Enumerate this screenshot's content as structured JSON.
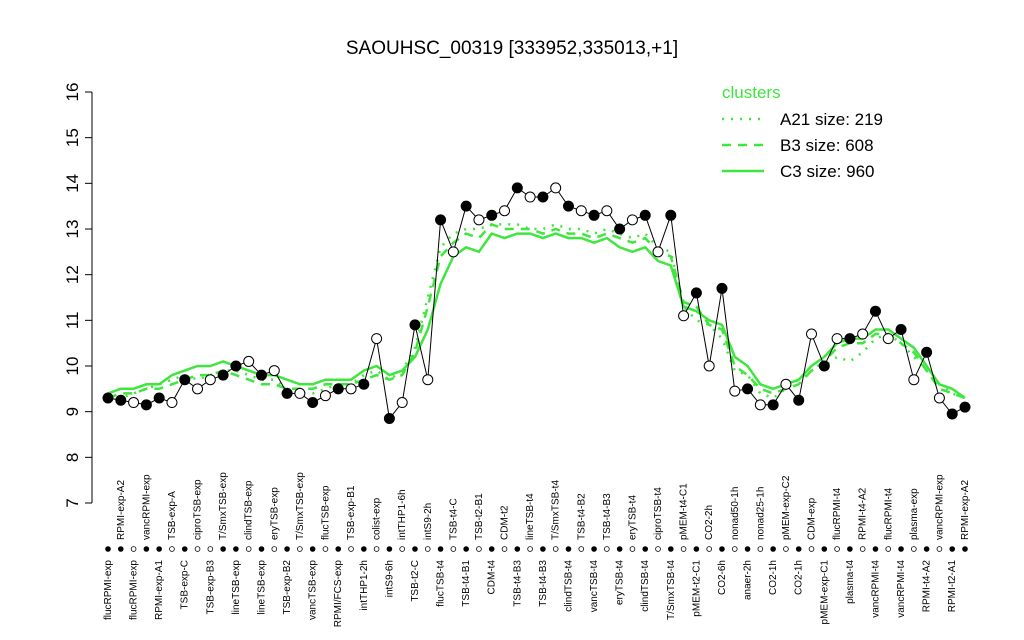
{
  "chart_data": {
    "type": "line",
    "title": "SAOUHSC_00319 [333952,335013,+1]",
    "categories": [
      "flucRPMI-exp",
      "RPMI-exp-A2",
      "flucRPMI-exp",
      "vancRPMI-exp",
      "RPMI-exp-A1",
      "TSB-exp-A",
      "TSB-exp-C",
      "ciproTSB-exp",
      "TSB-exp-B3",
      "T/SmxTSB-exp",
      "lineTSB-exp",
      "clindTSB-exp",
      "lineTSB-exp",
      "eryTSB-exp",
      "TSB-exp-B2",
      "T/SmxTSB-exp",
      "vancTSB-exp",
      "flucTSB-exp",
      "RPMI/FCS-exp",
      "TSB-exp-B1",
      "intTHP1-2h",
      "colist-exp",
      "intS9-6h",
      "intTHP1-6h",
      "TSB-t2-C",
      "intS9-2h",
      "flucTSB-t4",
      "TSB-t4-C",
      "TSB-t4-B1",
      "TSB-t2-B1",
      "CDM-t4",
      "CDM-t2",
      "TSB-t4-B3",
      "lineTSB-t4",
      "TSB-t4-B3",
      "T/SmxTSB-t4",
      "clindTSB-t4",
      "TSB-t4-B2",
      "vancTSB-t4",
      "TSB-t4-B3",
      "eryTSB-t4",
      "eryTSB-t4",
      "clindTSB-t4",
      "ciproTSB-t4",
      "T/SmxTSB-t4",
      "pMEM-t4-C1",
      "pMEM-t2-C1",
      "CO2-2h",
      "CO2-6h",
      "nonad50-1h",
      "anaer-2h",
      "nonad25-1h",
      "CO2-1h",
      "pMEM-exp-C2",
      "CO2-1h",
      "CDM-exp",
      "pMEM-exp-C1",
      "flucRPMI-t4",
      "plasma-t4",
      "RPMI-t4-A2",
      "vancRPMI-t4",
      "flucRPMI-t4",
      "vancRPMI-t4",
      "plasma-exp",
      "RPMI-t4-A2",
      "vancRPMI-exp",
      "RPMI-t2-A1",
      "RPMI-exp-A2"
    ],
    "values": [
      9.3,
      9.25,
      9.2,
      9.15,
      9.3,
      9.2,
      9.7,
      9.5,
      9.7,
      9.8,
      10.0,
      10.1,
      9.8,
      9.9,
      9.4,
      9.4,
      9.2,
      9.35,
      9.5,
      9.5,
      9.6,
      10.6,
      8.85,
      9.2,
      10.9,
      9.7,
      13.2,
      12.5,
      13.5,
      13.2,
      13.3,
      13.4,
      13.9,
      13.7,
      13.7,
      13.9,
      13.5,
      13.4,
      13.3,
      13.4,
      13.0,
      13.2,
      13.3,
      12.5,
      13.3,
      11.1,
      11.6,
      10.0,
      11.7,
      9.45,
      9.5,
      9.15,
      9.15,
      9.6,
      9.25,
      10.7,
      10.0,
      10.6,
      10.6,
      10.7,
      11.2,
      10.6,
      10.8,
      9.7,
      10.3,
      9.3,
      8.95,
      9.1
    ],
    "point_filled": [
      true,
      true,
      false,
      true,
      true,
      false,
      true,
      false,
      false,
      true,
      true,
      false,
      true,
      false,
      true,
      false,
      true,
      false,
      true,
      false,
      true,
      false,
      true,
      false,
      true,
      false,
      true,
      false,
      true,
      false,
      true,
      false,
      true,
      false,
      true,
      false,
      true,
      false,
      true,
      false,
      true,
      false,
      true,
      false,
      true,
      false,
      true,
      false,
      true,
      false,
      true,
      false,
      true,
      false,
      true,
      false,
      true,
      false,
      true,
      false,
      true,
      false,
      true,
      false,
      true,
      false,
      true,
      true
    ],
    "legend_title": "clusters",
    "series": [
      {
        "name": "A21 size: 219",
        "color": "#3ee63e",
        "dash": "dotted",
        "values": [
          9.3,
          9.3,
          9.4,
          9.5,
          9.6,
          9.7,
          9.8,
          9.7,
          9.8,
          9.9,
          9.9,
          9.8,
          9.7,
          9.7,
          9.5,
          9.4,
          9.4,
          9.5,
          9.6,
          9.6,
          9.8,
          9.9,
          9.7,
          9.9,
          10.4,
          11.5,
          12.6,
          12.9,
          13.0,
          13.0,
          13.1,
          13.1,
          13.1,
          13.0,
          13.0,
          13.1,
          13.0,
          13.0,
          12.9,
          13.0,
          12.9,
          12.8,
          12.9,
          12.6,
          12.5,
          11.3,
          11.0,
          10.9,
          10.6,
          9.9,
          9.8,
          9.4,
          9.3,
          9.5,
          9.7,
          9.9,
          10.0,
          10.2,
          10.1,
          10.3,
          10.6,
          10.7,
          10.5,
          10.2,
          9.9,
          9.6,
          9.4,
          9.3
        ]
      },
      {
        "name": "B3 size: 608",
        "color": "#3ee63e",
        "dash": "dashed",
        "values": [
          9.3,
          9.4,
          9.4,
          9.5,
          9.5,
          9.6,
          9.7,
          9.8,
          9.8,
          9.9,
          9.8,
          9.7,
          9.6,
          9.6,
          9.5,
          9.5,
          9.5,
          9.6,
          9.6,
          9.6,
          9.7,
          9.8,
          9.7,
          9.8,
          10.3,
          11.3,
          12.4,
          12.7,
          12.9,
          12.8,
          13.1,
          13.0,
          13.0,
          13.0,
          12.9,
          13.0,
          12.9,
          12.9,
          12.8,
          12.9,
          12.8,
          12.7,
          12.8,
          12.5,
          12.4,
          11.4,
          11.3,
          10.9,
          10.8,
          10.0,
          9.8,
          9.5,
          9.4,
          9.5,
          9.6,
          9.9,
          10.1,
          10.4,
          10.5,
          10.5,
          10.7,
          10.7,
          10.5,
          10.3,
          9.9,
          9.5,
          9.4,
          9.3
        ]
      },
      {
        "name": "C3 size: 960",
        "color": "#3ee63e",
        "dash": "solid",
        "values": [
          9.4,
          9.5,
          9.5,
          9.6,
          9.6,
          9.8,
          9.9,
          10.0,
          10.0,
          10.1,
          10.0,
          9.9,
          9.8,
          9.8,
          9.7,
          9.6,
          9.6,
          9.7,
          9.7,
          9.7,
          9.9,
          10.0,
          9.8,
          9.9,
          10.2,
          10.8,
          11.8,
          12.4,
          12.6,
          12.5,
          12.9,
          12.8,
          12.9,
          12.9,
          12.8,
          12.9,
          12.8,
          12.8,
          12.7,
          12.8,
          12.6,
          12.5,
          12.6,
          12.3,
          12.2,
          11.3,
          11.2,
          11.0,
          10.9,
          10.2,
          10.0,
          9.6,
          9.5,
          9.6,
          9.7,
          10.0,
          10.2,
          10.5,
          10.6,
          10.6,
          10.8,
          10.8,
          10.6,
          10.4,
          10.0,
          9.6,
          9.5,
          9.3
        ]
      }
    ],
    "ylim": [
      7,
      16
    ],
    "yticks": [
      7,
      8,
      9,
      10,
      11,
      12,
      13,
      14,
      15,
      16
    ]
  }
}
